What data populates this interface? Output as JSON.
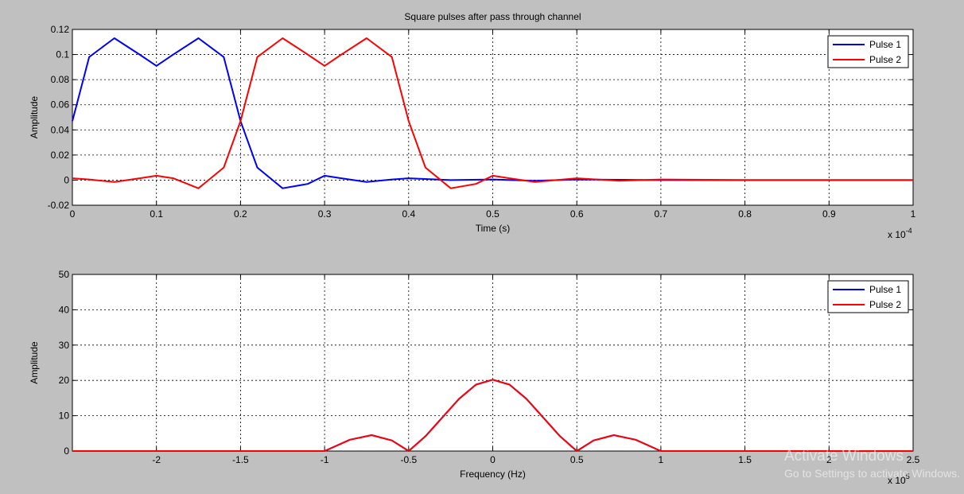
{
  "window": {
    "watermark_title": "Activate Windows",
    "watermark_subtitle": "Go to Settings to activate Windows."
  },
  "colors": {
    "background": "#c0c0c0",
    "axes_bg": "#ffffff",
    "pulse1": "#0000ff",
    "pulse2": "#ff0000",
    "grid": "#000000"
  },
  "chart_data": [
    {
      "type": "line",
      "title": "Square pulses after pass through channel",
      "xlabel": "Time (s)",
      "ylabel": "Amplitude",
      "x_exponent_base": "x 10",
      "x_exponent_power": "-4",
      "xlim": [
        0,
        1.0
      ],
      "ylim": [
        -0.02,
        0.12
      ],
      "xticks": [
        0,
        0.1,
        0.2,
        0.3,
        0.4,
        0.5,
        0.6,
        0.7,
        0.8,
        0.9,
        1
      ],
      "xtick_labels": [
        "0",
        "0.1",
        "0.2",
        "0.3",
        "0.4",
        "0.5",
        "0.6",
        "0.7",
        "0.8",
        "0.9",
        "1"
      ],
      "yticks": [
        -0.02,
        0,
        0.02,
        0.04,
        0.06,
        0.08,
        0.1,
        0.12
      ],
      "ytick_labels": [
        "-0.02",
        "0",
        "0.02",
        "0.04",
        "0.06",
        "0.08",
        "0.1",
        "0.12"
      ],
      "grid": true,
      "legend_position": "top-right",
      "series": [
        {
          "name": "Pulse 1",
          "color": "#0000ff",
          "x": [
            0,
            0.02,
            0.05,
            0.08,
            0.1,
            0.12,
            0.15,
            0.18,
            0.2,
            0.22,
            0.25,
            0.28,
            0.3,
            0.32,
            0.35,
            0.38,
            0.4,
            0.45,
            0.5,
            0.55,
            0.6,
            0.7,
            0.8,
            0.9,
            1.0
          ],
          "y": [
            0.047,
            0.098,
            0.113,
            0.1,
            0.091,
            0.1,
            0.113,
            0.098,
            0.047,
            0.01,
            -0.0065,
            -0.003,
            0.0035,
            0.0015,
            -0.0015,
            0.0005,
            0.0015,
            0.0,
            0.0005,
            -0.0005,
            0.0005,
            0.0,
            0.0,
            0.0,
            0.0
          ]
        },
        {
          "name": "Pulse 2",
          "color": "#ff0000",
          "x": [
            0,
            0.02,
            0.05,
            0.08,
            0.1,
            0.12,
            0.15,
            0.18,
            0.2,
            0.22,
            0.25,
            0.28,
            0.3,
            0.32,
            0.35,
            0.38,
            0.4,
            0.42,
            0.45,
            0.48,
            0.5,
            0.52,
            0.55,
            0.6,
            0.65,
            0.7,
            0.8,
            0.9,
            1.0
          ],
          "y": [
            0.0015,
            0.0005,
            -0.0015,
            0.0015,
            0.0035,
            0.0015,
            -0.0065,
            0.01,
            0.047,
            0.098,
            0.113,
            0.1,
            0.091,
            0.1,
            0.113,
            0.098,
            0.047,
            0.01,
            -0.0065,
            -0.003,
            0.0035,
            0.0015,
            -0.0015,
            0.0015,
            -0.0005,
            0.0005,
            0.0,
            0.0,
            0.0
          ]
        }
      ]
    },
    {
      "type": "line",
      "title": "",
      "xlabel": "Frequency (Hz)",
      "ylabel": "Amplitude",
      "x_exponent_base": "x 10",
      "x_exponent_power": "5",
      "xlim": [
        -2.5,
        2.5
      ],
      "ylim": [
        0,
        50
      ],
      "xticks": [
        -2,
        -1.5,
        -1,
        -0.5,
        0,
        0.5,
        1,
        1.5,
        2,
        2.5
      ],
      "xtick_labels": [
        "-2",
        "-1.5",
        "-1",
        "-0.5",
        "0",
        "0.5",
        "1",
        "1.5",
        "2",
        "2.5"
      ],
      "yticks": [
        0,
        10,
        20,
        30,
        40,
        50
      ],
      "ytick_labels": [
        "0",
        "10",
        "20",
        "30",
        "40",
        "50"
      ],
      "grid": true,
      "legend_position": "top-right",
      "series": [
        {
          "name": "Pulse 1",
          "color": "#0000ff",
          "x": [
            -2.5,
            -1.0,
            -0.85,
            -0.72,
            -0.6,
            -0.5,
            -0.4,
            -0.3,
            -0.2,
            -0.1,
            0,
            0.1,
            0.2,
            0.3,
            0.4,
            0.5,
            0.6,
            0.72,
            0.85,
            1.0,
            2.5
          ],
          "y": [
            0,
            0,
            3.2,
            4.5,
            3.0,
            0,
            4.2,
            9.5,
            14.8,
            18.8,
            20.2,
            18.8,
            14.8,
            9.5,
            4.2,
            0,
            3.0,
            4.5,
            3.2,
            0,
            0
          ]
        },
        {
          "name": "Pulse 2",
          "color": "#ff0000",
          "x": [
            -2.5,
            -1.0,
            -0.85,
            -0.72,
            -0.6,
            -0.5,
            -0.4,
            -0.3,
            -0.2,
            -0.1,
            0,
            0.1,
            0.2,
            0.3,
            0.4,
            0.5,
            0.6,
            0.72,
            0.85,
            1.0,
            2.5
          ],
          "y": [
            0,
            0,
            3.2,
            4.5,
            3.0,
            0,
            4.2,
            9.5,
            14.8,
            18.8,
            20.2,
            18.8,
            14.8,
            9.5,
            4.2,
            0,
            3.0,
            4.5,
            3.2,
            0,
            0
          ]
        }
      ]
    }
  ]
}
